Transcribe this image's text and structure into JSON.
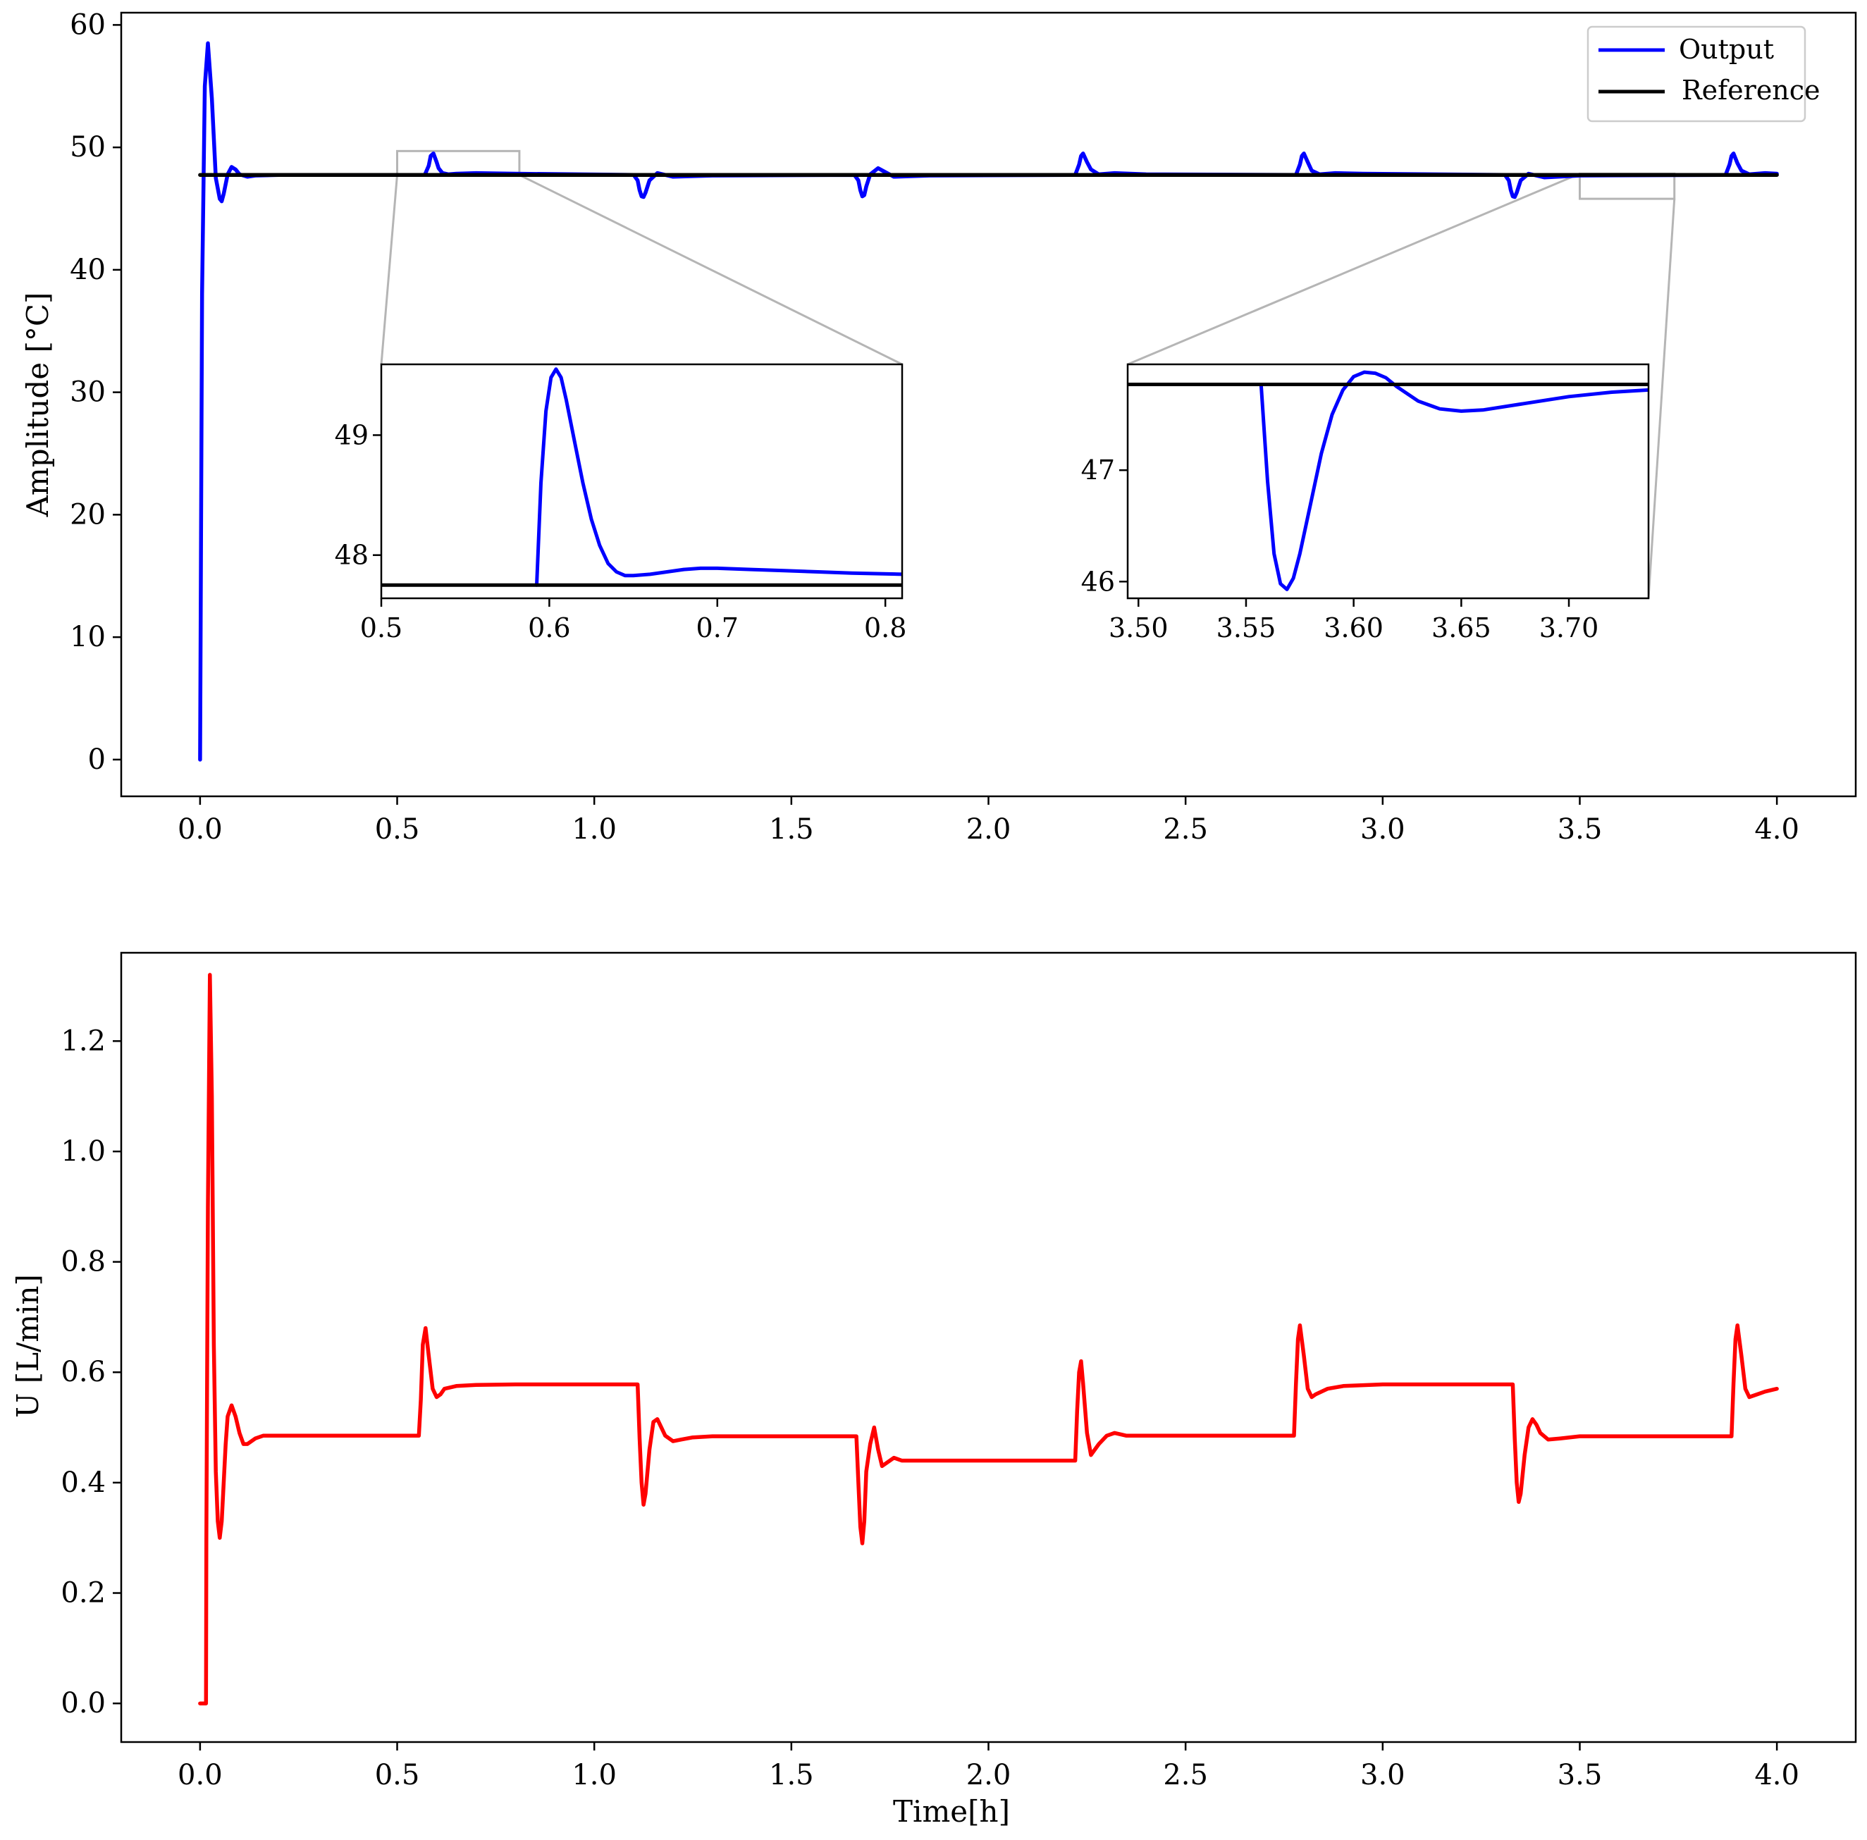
{
  "colors": {
    "output": "#0000ff",
    "reference": "#000000",
    "control": "#ff0000",
    "zoom_connector": "#b5b5b5"
  },
  "legend": {
    "placement": "top-right",
    "output_label": "Output",
    "reference_label": "Reference"
  },
  "chart_data": [
    {
      "id": "temperature",
      "type": "line",
      "title": "",
      "xlabel": "",
      "ylabel": "Amplitude [°C]",
      "xlim": [
        -0.2,
        4.2
      ],
      "ylim": [
        -3,
        61
      ],
      "xticks": [
        "0.0",
        "0.5",
        "1.0",
        "1.5",
        "2.0",
        "2.5",
        "3.0",
        "3.5",
        "4.0"
      ],
      "yticks": [
        "0",
        "10",
        "20",
        "30",
        "40",
        "50",
        "60"
      ],
      "grid": false,
      "series": [
        {
          "name": "Output",
          "color": "#0000ff",
          "x": [
            0,
            0.005,
            0.012,
            0.02,
            0.03,
            0.04,
            0.05,
            0.055,
            0.06,
            0.07,
            0.08,
            0.09,
            0.1,
            0.12,
            0.14,
            0.2,
            0.57,
            0.58,
            0.585,
            0.592,
            0.6,
            0.605,
            0.615,
            0.63,
            0.65,
            0.7,
            0.8,
            1.1,
            1.11,
            1.115,
            1.12,
            1.125,
            1.13,
            1.14,
            1.16,
            1.2,
            1.3,
            1.66,
            1.67,
            1.675,
            1.68,
            1.685,
            1.69,
            1.7,
            1.72,
            1.76,
            1.85,
            2.22,
            2.23,
            2.235,
            2.24,
            2.25,
            2.26,
            2.28,
            2.32,
            2.4,
            2.78,
            2.79,
            2.795,
            2.8,
            2.81,
            2.82,
            2.84,
            2.88,
            2.95,
            3.31,
            3.32,
            3.325,
            3.33,
            3.335,
            3.34,
            3.35,
            3.37,
            3.41,
            3.5,
            3.87,
            3.88,
            3.885,
            3.89,
            3.9,
            3.91,
            3.93,
            3.97,
            4.0
          ],
          "y": [
            0,
            38,
            55,
            58.5,
            54,
            47.5,
            45.8,
            45.6,
            46.2,
            47.8,
            48.4,
            48.2,
            47.8,
            47.6,
            47.7,
            47.75,
            47.75,
            48.5,
            49.3,
            49.5,
            48.8,
            48.3,
            47.9,
            47.8,
            47.85,
            47.9,
            47.85,
            47.75,
            47.3,
            46.5,
            46,
            45.95,
            46.3,
            47.3,
            47.9,
            47.6,
            47.7,
            47.75,
            47.3,
            46.5,
            46,
            46.1,
            46.8,
            47.8,
            48.3,
            47.6,
            47.7,
            47.75,
            48.6,
            49.3,
            49.5,
            48.8,
            48.2,
            47.8,
            47.9,
            47.8,
            47.75,
            48.6,
            49.3,
            49.5,
            48.8,
            48.1,
            47.8,
            47.9,
            47.85,
            47.75,
            47.3,
            46.5,
            46,
            45.95,
            46.3,
            47.3,
            47.85,
            47.55,
            47.7,
            47.75,
            48.6,
            49.3,
            49.5,
            48.7,
            48.1,
            47.8,
            47.9,
            47.85
          ]
        },
        {
          "name": "Reference",
          "color": "#000000",
          "x": [
            0,
            4.0
          ],
          "y": [
            47.75,
            47.75
          ]
        }
      ],
      "zoom_rects": [
        {
          "xlim": [
            0.5,
            0.81
          ],
          "ylim": [
            47.75,
            49.7
          ]
        },
        {
          "xlim": [
            3.5,
            3.74
          ],
          "ylim": [
            45.8,
            47.85
          ]
        }
      ]
    },
    {
      "id": "inset-1",
      "type": "line",
      "title": "",
      "xlim": [
        0.5,
        0.81
      ],
      "ylim": [
        47.64,
        49.59
      ],
      "xticks": [
        "0.5",
        "0.6",
        "0.7",
        "0.8"
      ],
      "yticks": [
        "48",
        "49"
      ],
      "series": [
        {
          "name": "Output",
          "color": "#0000ff",
          "x": [
            0.5925,
            0.595,
            0.598,
            0.601,
            0.604,
            0.607,
            0.61,
            0.615,
            0.62,
            0.625,
            0.63,
            0.635,
            0.64,
            0.645,
            0.65,
            0.66,
            0.67,
            0.68,
            0.69,
            0.7,
            0.72,
            0.74,
            0.76,
            0.78,
            0.81
          ],
          "y": [
            47.75,
            48.6,
            49.2,
            49.48,
            49.55,
            49.48,
            49.3,
            48.95,
            48.6,
            48.3,
            48.08,
            47.93,
            47.86,
            47.83,
            47.83,
            47.84,
            47.86,
            47.88,
            47.89,
            47.89,
            47.88,
            47.87,
            47.86,
            47.85,
            47.84
          ]
        },
        {
          "name": "Reference",
          "color": "#000000",
          "x": [
            0.5,
            0.81
          ],
          "y": [
            47.75,
            47.75
          ]
        }
      ]
    },
    {
      "id": "inset-2",
      "type": "line",
      "title": "",
      "xlim": [
        3.495,
        3.737
      ],
      "ylim": [
        45.85,
        47.95
      ],
      "xticks": [
        "3.50",
        "3.55",
        "3.60",
        "3.65",
        "3.70"
      ],
      "yticks": [
        "46",
        "47"
      ],
      "series": [
        {
          "name": "Output",
          "color": "#0000ff",
          "x": [
            3.557,
            3.56,
            3.563,
            3.566,
            3.569,
            3.572,
            3.575,
            3.58,
            3.585,
            3.59,
            3.595,
            3.6,
            3.605,
            3.61,
            3.615,
            3.62,
            3.63,
            3.64,
            3.65,
            3.66,
            3.68,
            3.7,
            3.72,
            3.737
          ],
          "y": [
            47.77,
            46.9,
            46.25,
            45.98,
            45.93,
            46.03,
            46.25,
            46.7,
            47.15,
            47.5,
            47.72,
            47.84,
            47.88,
            47.87,
            47.83,
            47.75,
            47.62,
            47.55,
            47.53,
            47.54,
            47.6,
            47.66,
            47.7,
            47.72
          ]
        },
        {
          "name": "Reference",
          "color": "#000000",
          "x": [
            3.495,
            3.737
          ],
          "y": [
            47.77,
            47.77
          ]
        }
      ]
    },
    {
      "id": "control",
      "type": "line",
      "title": "",
      "xlabel": "Time[h]",
      "ylabel": "U [L/min]",
      "xlim": [
        -0.2,
        4.2
      ],
      "ylim": [
        -0.07,
        1.36
      ],
      "xticks": [
        "0.0",
        "0.5",
        "1.0",
        "1.5",
        "2.0",
        "2.5",
        "3.0",
        "3.5",
        "4.0"
      ],
      "yticks": [
        "0.0",
        "0.2",
        "0.4",
        "0.6",
        "0.8",
        "1.0",
        "1.2"
      ],
      "grid": false,
      "series": [
        {
          "name": "",
          "color": "#ff0000",
          "x": [
            0,
            0.015,
            0.016,
            0.02,
            0.025,
            0.03,
            0.035,
            0.04,
            0.045,
            0.05,
            0.055,
            0.06,
            0.065,
            0.07,
            0.08,
            0.09,
            0.1,
            0.11,
            0.12,
            0.14,
            0.16,
            0.2,
            0.555,
            0.56,
            0.565,
            0.572,
            0.58,
            0.59,
            0.6,
            0.61,
            0.62,
            0.65,
            0.7,
            0.8,
            1.11,
            1.115,
            1.12,
            1.125,
            1.13,
            1.14,
            1.15,
            1.16,
            1.17,
            1.18,
            1.2,
            1.22,
            1.25,
            1.3,
            1.665,
            1.67,
            1.675,
            1.68,
            1.685,
            1.69,
            1.7,
            1.71,
            1.72,
            1.73,
            1.74,
            1.76,
            1.78,
            1.8,
            2.22,
            2.225,
            2.23,
            2.235,
            2.24,
            2.25,
            2.26,
            2.27,
            2.28,
            2.3,
            2.32,
            2.35,
            2.4,
            2.775,
            2.78,
            2.785,
            2.79,
            2.8,
            2.81,
            2.82,
            2.83,
            2.86,
            2.9,
            3.0,
            3.33,
            3.335,
            3.34,
            3.345,
            3.35,
            3.36,
            3.37,
            3.38,
            3.39,
            3.4,
            3.42,
            3.45,
            3.5,
            3.885,
            3.89,
            3.895,
            3.9,
            3.91,
            3.92,
            3.93,
            3.95,
            3.97,
            4.0
          ],
          "y": [
            0,
            0,
            0.3,
            0.9,
            1.32,
            1.1,
            0.65,
            0.42,
            0.33,
            0.3,
            0.33,
            0.4,
            0.47,
            0.52,
            0.54,
            0.52,
            0.49,
            0.47,
            0.47,
            0.48,
            0.485,
            0.485,
            0.485,
            0.55,
            0.65,
            0.68,
            0.63,
            0.57,
            0.555,
            0.56,
            0.57,
            0.575,
            0.577,
            0.578,
            0.578,
            0.48,
            0.4,
            0.36,
            0.38,
            0.46,
            0.51,
            0.515,
            0.5,
            0.485,
            0.475,
            0.478,
            0.482,
            0.484,
            0.484,
            0.4,
            0.32,
            0.29,
            0.33,
            0.42,
            0.47,
            0.5,
            0.46,
            0.43,
            0.435,
            0.445,
            0.44,
            0.44,
            0.44,
            0.53,
            0.6,
            0.62,
            0.58,
            0.49,
            0.45,
            0.46,
            0.47,
            0.485,
            0.49,
            0.485,
            0.485,
            0.485,
            0.58,
            0.66,
            0.685,
            0.63,
            0.57,
            0.555,
            0.56,
            0.57,
            0.575,
            0.578,
            0.578,
            0.48,
            0.4,
            0.365,
            0.38,
            0.45,
            0.5,
            0.515,
            0.505,
            0.49,
            0.478,
            0.48,
            0.484,
            0.484,
            0.58,
            0.66,
            0.685,
            0.63,
            0.57,
            0.555,
            0.56,
            0.565,
            0.57
          ]
        }
      ]
    }
  ]
}
